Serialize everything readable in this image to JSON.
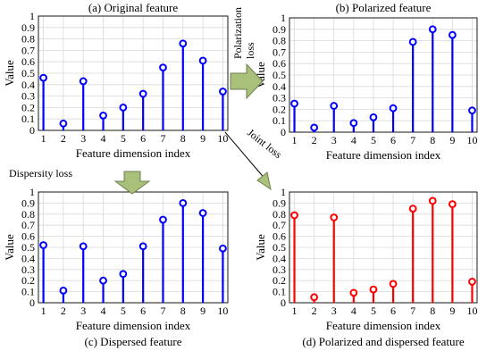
{
  "colors": {
    "blue": "#0000ff",
    "red": "#ff0000",
    "arrow_fill": "#a9c07a",
    "arrow_stroke": "#6f7f50"
  },
  "annotations": {
    "polarization_line1": "Polarization",
    "polarization_line2": "loss",
    "dispersity": "Dispersity loss",
    "joint": "Joint loss"
  },
  "chart_data": [
    {
      "type": "stem",
      "title": "(a) Original feature",
      "xlabel": "Feature dimension index",
      "ylabel": "Value",
      "x": [
        1,
        2,
        3,
        4,
        5,
        6,
        7,
        8,
        9,
        10
      ],
      "values": [
        0.46,
        0.06,
        0.43,
        0.13,
        0.2,
        0.32,
        0.55,
        0.76,
        0.61,
        0.34
      ],
      "ylim": [
        0,
        1
      ],
      "yticks": [
        "0",
        "0.1",
        "0.2",
        "0.3",
        "0.4",
        "0.5",
        "0.6",
        "0.7",
        "0.8",
        "0.9",
        "1"
      ],
      "grid": true,
      "color": "#0000ff"
    },
    {
      "type": "stem",
      "title": "(b) Polarized feature",
      "xlabel": "Feature dimension index",
      "ylabel": "Value",
      "x": [
        1,
        2,
        3,
        4,
        5,
        6,
        7,
        8,
        9,
        10
      ],
      "values": [
        0.25,
        0.04,
        0.23,
        0.08,
        0.13,
        0.21,
        0.79,
        0.9,
        0.85,
        0.19
      ],
      "ylim": [
        0,
        1
      ],
      "yticks": [
        "0",
        "0.1",
        "0.2",
        "0.3",
        "0.4",
        "0.5",
        "0.6",
        "0.7",
        "0.8",
        "0.9",
        "1"
      ],
      "grid": true,
      "color": "#0000ff"
    },
    {
      "type": "stem",
      "title": "(c) Dispersed feature",
      "xlabel": "Feature dimension index",
      "ylabel": "Value",
      "x": [
        1,
        2,
        3,
        4,
        5,
        6,
        7,
        8,
        9,
        10
      ],
      "values": [
        0.52,
        0.11,
        0.51,
        0.2,
        0.26,
        0.51,
        0.75,
        0.9,
        0.81,
        0.49
      ],
      "ylim": [
        0,
        1
      ],
      "yticks": [
        "0",
        "0.1",
        "0.2",
        "0.3",
        "0.4",
        "0.5",
        "0.6",
        "0.7",
        "0.8",
        "0.9",
        "1"
      ],
      "grid": true,
      "color": "#0000ff"
    },
    {
      "type": "stem",
      "title": "(d) Polarized and dispersed feature",
      "xlabel": "Feature dimension index",
      "ylabel": "Value",
      "x": [
        1,
        2,
        3,
        4,
        5,
        6,
        7,
        8,
        9,
        10
      ],
      "values": [
        0.79,
        0.05,
        0.77,
        0.09,
        0.12,
        0.17,
        0.85,
        0.92,
        0.89,
        0.19
      ],
      "ylim": [
        0,
        1
      ],
      "yticks": [
        "0",
        "0.1",
        "0.2",
        "0.3",
        "0.4",
        "0.5",
        "0.6",
        "0.7",
        "0.8",
        "0.9",
        "1"
      ],
      "grid": true,
      "color": "#ff0000"
    }
  ]
}
